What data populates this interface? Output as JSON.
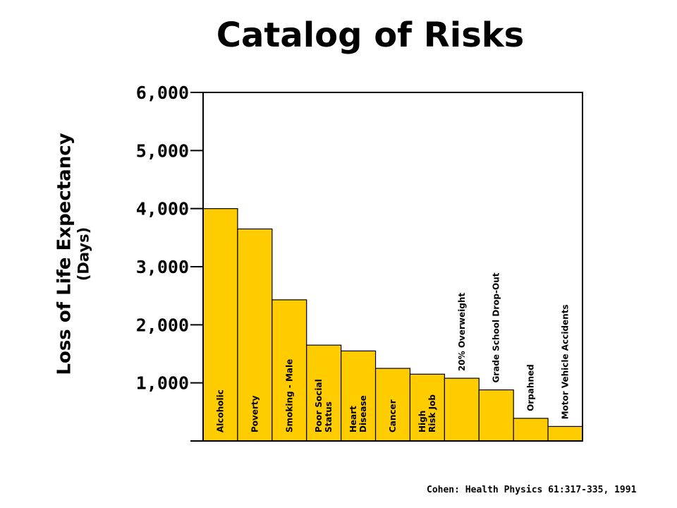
{
  "chart_data": {
    "type": "bar",
    "title": "Catalog of Risks",
    "ylabel": "Loss of Life Expectancy",
    "ylabel_sub": "(Days)",
    "xlabel": "",
    "ylim": [
      0,
      6000
    ],
    "yticks": [
      "",
      "1,000",
      "2,000",
      "3,000",
      "4,000",
      "5,000",
      "6,000"
    ],
    "categories": [
      "Alcoholic",
      "Poverty",
      "Smoking - Male",
      "Poor Social Status",
      "Heart Disease",
      "Cancer",
      "High Risk Job",
      "20% Overweight",
      "Grade School Drop-Out",
      "Orpahned",
      "Motor Vehicle Accidents"
    ],
    "label_lines": [
      [
        "Alcoholic"
      ],
      [
        "Poverty"
      ],
      [
        "Smoking - Male"
      ],
      [
        "Poor Social",
        "Status"
      ],
      [
        "Heart",
        "Disease"
      ],
      [
        "Cancer"
      ],
      [
        "High",
        "Risk Job"
      ],
      [
        "20% Overweight"
      ],
      [
        "Grade School Drop-Out"
      ],
      [
        "Orpahned"
      ],
      [
        "Motor Vehicle Accidents"
      ]
    ],
    "values": [
      4000,
      3650,
      2430,
      1650,
      1550,
      1250,
      1150,
      1080,
      880,
      390,
      250
    ],
    "bar_color": "#FFCC00",
    "grid": false,
    "legend": "none"
  },
  "source": "Cohen: Health Physics 61:317-335, 1991"
}
